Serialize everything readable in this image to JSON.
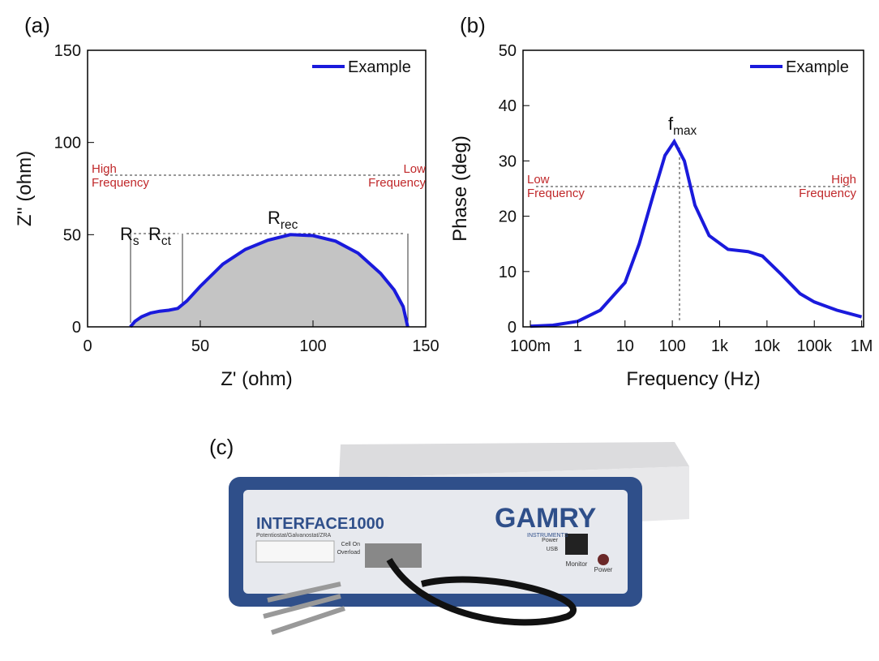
{
  "chart_data": [
    {
      "type": "line",
      "panel_label": "(a)",
      "x_label": "Z' (ohm)",
      "y_label": "Z'' (ohm)",
      "x": [
        19,
        21,
        24,
        28,
        32,
        36,
        40,
        44,
        50,
        60,
        70,
        80,
        90,
        100,
        110,
        120,
        130,
        136,
        140,
        142
      ],
      "series": [
        {
          "name": "Example",
          "color": "#1a1adc",
          "values": [
            0,
            3,
            5.5,
            7.5,
            8.5,
            9,
            10,
            14,
            22,
            34,
            42,
            47,
            50,
            49.5,
            46.5,
            40,
            29,
            20,
            11,
            0
          ]
        }
      ],
      "xlim": [
        0,
        150
      ],
      "ylim": [
        0,
        150
      ],
      "xticks": [
        0,
        50,
        100,
        150
      ],
      "yticks": [
        0,
        50,
        100,
        150
      ],
      "legend": "upper right",
      "fill_under": "#c4c4c4",
      "annotations": [
        {
          "text": "High\nFrequency"
        },
        {
          "text": "Low\nFrequency"
        },
        {
          "text": "R",
          "subscript": "s"
        },
        {
          "text": "R",
          "subscript": "ct"
        },
        {
          "text": "R",
          "subscript": "rec"
        }
      ]
    },
    {
      "type": "line",
      "panel_label": "(b)",
      "x_label": "Frequency (Hz)",
      "y_label": "Phase (deg)",
      "log_x": true,
      "x": [
        0.1,
        0.3,
        1,
        3,
        10,
        20,
        40,
        70,
        110,
        180,
        300,
        600,
        1500,
        4000,
        8000,
        20000,
        50000,
        100000,
        300000,
        1000000
      ],
      "series": [
        {
          "name": "Example",
          "color": "#1a1adc",
          "values": [
            0.1,
            0.3,
            1,
            3,
            8,
            15,
            24,
            31,
            33.5,
            30,
            22,
            16.5,
            14,
            13.6,
            12.8,
            9.5,
            6,
            4.5,
            3,
            1.8
          ]
        }
      ],
      "xlim": [
        0.07,
        1100000
      ],
      "ylim": [
        0,
        50
      ],
      "xticks": [
        {
          "value": 0.1,
          "label": "100m"
        },
        1,
        10,
        100,
        {
          "value": 1000,
          "label": "1k"
        },
        {
          "value": 10000,
          "label": "10k"
        },
        {
          "value": 100000,
          "label": "100k"
        },
        {
          "value": 1000000,
          "label": "1M"
        }
      ],
      "yticks": [
        0,
        10,
        20,
        30,
        40,
        50
      ],
      "legend": "upper right",
      "annotations": [
        {
          "text": "f",
          "subscript": "max"
        },
        {
          "text": "Low\nFrequency"
        },
        {
          "text": "High\nFrequency"
        }
      ]
    }
  ],
  "panel_c": {
    "label": "(c)",
    "texts": [
      "INTERFACE1000",
      "Potentiostat/Galvanostat/ZRA",
      "GAMRY",
      "INSTRUMENTS",
      "Cell On",
      "Overload",
      "Power",
      "USB",
      "Monitor",
      "Power"
    ]
  }
}
